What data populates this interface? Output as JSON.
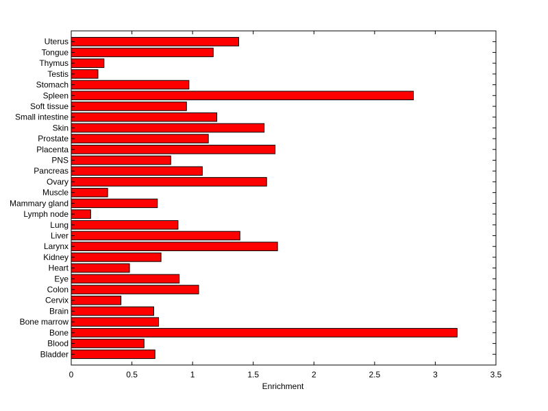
{
  "chart_data": {
    "type": "bar",
    "orientation": "horizontal",
    "title": "",
    "xlabel": "Enrichment",
    "ylabel": "",
    "xlim": [
      0,
      3.5
    ],
    "xticks": [
      0,
      0.5,
      1,
      1.5,
      2,
      2.5,
      3,
      3.5
    ],
    "xtick_labels": [
      "0",
      "0.5",
      "1",
      "1.5",
      "2",
      "2.5",
      "3",
      "3.5"
    ],
    "grid": false,
    "bar_color": "#ff0000",
    "bar_edge_color": "#000000",
    "categories": [
      "Uterus",
      "Tongue",
      "Thymus",
      "Testis",
      "Stomach",
      "Spleen",
      "Soft tissue",
      "Small intestine",
      "Skin",
      "Prostate",
      "Placenta",
      "PNS",
      "Pancreas",
      "Ovary",
      "Muscle",
      "Mammary gland",
      "Lymph node",
      "Lung",
      "Liver",
      "Larynx",
      "Kidney",
      "Heart",
      "Eye",
      "Colon",
      "Cervix",
      "Brain",
      "Bone marrow",
      "Bone",
      "Blood",
      "Bladder"
    ],
    "values": [
      1.38,
      1.17,
      0.27,
      0.22,
      0.97,
      2.82,
      0.95,
      1.2,
      1.59,
      1.13,
      1.68,
      0.82,
      1.08,
      1.61,
      0.3,
      0.71,
      0.16,
      0.88,
      1.39,
      1.7,
      0.74,
      0.48,
      0.89,
      1.05,
      0.41,
      0.68,
      0.72,
      3.18,
      0.6,
      0.69
    ]
  }
}
